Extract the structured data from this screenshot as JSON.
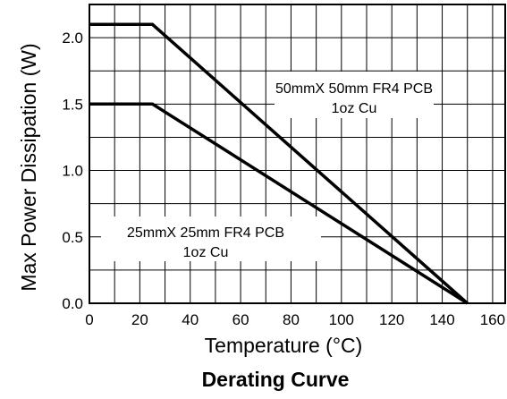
{
  "chart_data": {
    "type": "line",
    "title": "Derating Curve",
    "xlabel": "Temperature (°C)",
    "ylabel": "Max Power Dissipation (W)",
    "xlim": [
      0,
      165
    ],
    "ylim": [
      0,
      2.25
    ],
    "xticks": [
      0,
      20,
      40,
      60,
      80,
      100,
      120,
      140,
      160
    ],
    "xtick_labels": [
      "0",
      "20",
      "40",
      "60",
      "80",
      "100",
      "120",
      "140",
      "160"
    ],
    "yticks": [
      0.0,
      0.5,
      1.0,
      1.5,
      2.0
    ],
    "ytick_labels": [
      "0.0",
      "0.5",
      "1.0",
      "1.5",
      "2.0"
    ],
    "grid": true,
    "series": [
      {
        "x": [
          0,
          25,
          150
        ],
        "y": [
          2.1,
          2.1,
          0.0
        ]
      },
      {
        "x": [
          0,
          25,
          150
        ],
        "y": [
          1.5,
          1.5,
          0.0
        ]
      }
    ],
    "annotations": [
      {
        "lines": [
          "50mmX 50mm FR4 PCB",
          "1oz Cu"
        ]
      },
      {
        "lines": [
          "25mmX 25mm FR4 PCB",
          "1oz Cu"
        ]
      }
    ]
  }
}
